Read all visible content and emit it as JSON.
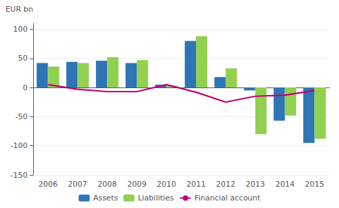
{
  "chart_data": {
    "type": "bar",
    "ylabel": "EUR bn",
    "categories": [
      "2006",
      "2007",
      "2008",
      "2009",
      "2010",
      "2011",
      "2012",
      "2013",
      "2014",
      "2015"
    ],
    "series": [
      {
        "name": "Assets",
        "type": "bar",
        "color": "#2e75b6",
        "values": [
          42,
          44,
          46,
          42,
          5,
          80,
          18,
          -5,
          -57,
          -95
        ]
      },
      {
        "name": "Liabilities",
        "type": "bar",
        "color": "#92d050",
        "values": [
          36,
          42,
          52,
          47,
          3,
          88,
          33,
          -80,
          -48,
          -88
        ]
      },
      {
        "name": "Financial account",
        "type": "line",
        "color": "#c00070",
        "values": [
          5,
          -3,
          -7,
          -7,
          5,
          -8,
          -25,
          -15,
          -13,
          -5
        ]
      }
    ],
    "ylim": [
      -150,
      110
    ],
    "yticks": [
      -150,
      -100,
      -50,
      0,
      50,
      100
    ],
    "grid": true,
    "legend": "bottom"
  }
}
